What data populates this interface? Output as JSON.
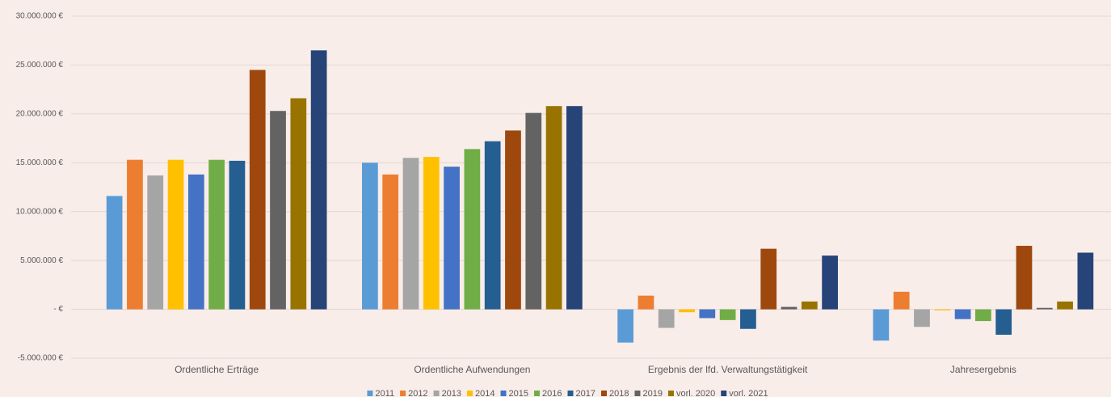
{
  "chart_data": {
    "type": "bar",
    "categories": [
      "Ordentliche Erträge",
      "Ordentliche Aufwendungen",
      "Ergebnis der lfd. Verwaltungstätigkeit",
      "Jahresergebnis"
    ],
    "series": [
      {
        "name": "2011",
        "color": "#5b9bd5",
        "values": [
          11600000,
          15000000,
          -3400000,
          -3200000
        ]
      },
      {
        "name": "2012",
        "color": "#ed7d31",
        "values": [
          15300000,
          13800000,
          1400000,
          1800000
        ]
      },
      {
        "name": "2013",
        "color": "#a5a5a5",
        "values": [
          13700000,
          15500000,
          -1900000,
          -1800000
        ]
      },
      {
        "name": "2014",
        "color": "#ffc000",
        "values": [
          15300000,
          15600000,
          -300000,
          -100000
        ]
      },
      {
        "name": "2015",
        "color": "#4472c4",
        "values": [
          13800000,
          14600000,
          -900000,
          -1000000
        ]
      },
      {
        "name": "2016",
        "color": "#70ad47",
        "values": [
          15300000,
          16400000,
          -1100000,
          -1200000
        ]
      },
      {
        "name": "2017",
        "color": "#255e91",
        "values": [
          15200000,
          17200000,
          -2000000,
          -2600000
        ]
      },
      {
        "name": "2018",
        "color": "#9e480e",
        "values": [
          24500000,
          18300000,
          6200000,
          6500000
        ]
      },
      {
        "name": "2019",
        "color": "#636363",
        "values": [
          20300000,
          20100000,
          250000,
          150000
        ]
      },
      {
        "name": "vorl. 2020",
        "color": "#997300",
        "values": [
          21600000,
          20800000,
          800000,
          800000
        ]
      },
      {
        "name": "vorl. 2021",
        "color": "#264478",
        "values": [
          26500000,
          20800000,
          5500000,
          5800000
        ]
      }
    ],
    "ylim": [
      -5000000,
      30000000
    ],
    "yticks": [
      {
        "value": -5000000,
        "label": "-5.000.000 €"
      },
      {
        "value": 0,
        "label": "- €"
      },
      {
        "value": 5000000,
        "label": "5.000.000 €"
      },
      {
        "value": 10000000,
        "label": "10.000.000 €"
      },
      {
        "value": 15000000,
        "label": "15.000.000 €"
      },
      {
        "value": 20000000,
        "label": "20.000.000 €"
      },
      {
        "value": 25000000,
        "label": "25.000.000 €"
      },
      {
        "value": 30000000,
        "label": "30.000.000 €"
      }
    ],
    "grid": true,
    "legend": "bottom"
  }
}
